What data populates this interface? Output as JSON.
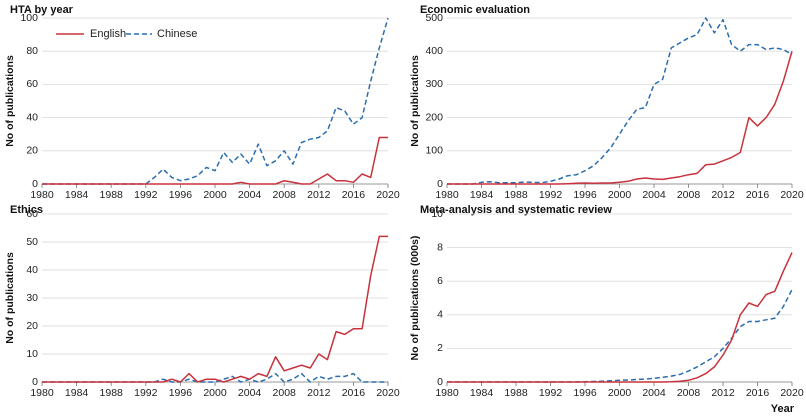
{
  "colors": {
    "english": "#c8323c",
    "chinese": "#2a6eb0"
  },
  "legend": {
    "english": "English",
    "chinese": "Chinese"
  },
  "chart_data": [
    {
      "id": "hta",
      "type": "line",
      "title": "HTA by year",
      "xlabel": "",
      "ylabel": "No of publications",
      "xlim": [
        1980,
        2020
      ],
      "xticks": [
        1980,
        1984,
        1988,
        1992,
        1996,
        2000,
        2004,
        2008,
        2012,
        2016,
        2020
      ],
      "ylim": [
        0,
        100
      ],
      "yticks": [
        0,
        20,
        40,
        60,
        80,
        100
      ],
      "x": [
        1980,
        1981,
        1982,
        1983,
        1984,
        1985,
        1986,
        1987,
        1988,
        1989,
        1990,
        1991,
        1992,
        1993,
        1994,
        1995,
        1996,
        1997,
        1998,
        1999,
        2000,
        2001,
        2002,
        2003,
        2004,
        2005,
        2006,
        2007,
        2008,
        2009,
        2010,
        2011,
        2012,
        2013,
        2014,
        2015,
        2016,
        2017,
        2018,
        2019,
        2020
      ],
      "series": [
        {
          "name": "English",
          "key": "english",
          "values": [
            0,
            0,
            0,
            0,
            0,
            0,
            0,
            0,
            0,
            0,
            0,
            0,
            0,
            0,
            0,
            0,
            0,
            0,
            0,
            0,
            0,
            0,
            0,
            1,
            0,
            0,
            0,
            0,
            2,
            1,
            0,
            0,
            3,
            6,
            2,
            2,
            1,
            6,
            4,
            28,
            28
          ]
        },
        {
          "name": "Chinese",
          "key": "chinese",
          "values": [
            0,
            0,
            0,
            0,
            0,
            0,
            0,
            0,
            0,
            0,
            0,
            0,
            0,
            4,
            9,
            4,
            2,
            3,
            5,
            10,
            8,
            19,
            13,
            18,
            12,
            24,
            11,
            14,
            20,
            12,
            25,
            27,
            28,
            32,
            46,
            44,
            36,
            40,
            62,
            82,
            100
          ]
        }
      ]
    },
    {
      "id": "economic",
      "type": "line",
      "title": "Economic evaluation",
      "xlabel": "",
      "ylabel": "No of publications",
      "xlim": [
        1980,
        2020
      ],
      "xticks": [
        1980,
        1984,
        1988,
        1992,
        1996,
        2000,
        2004,
        2008,
        2012,
        2016,
        2020
      ],
      "ylim": [
        0,
        500
      ],
      "yticks": [
        0,
        100,
        200,
        300,
        400,
        500
      ],
      "x": [
        1980,
        1981,
        1982,
        1983,
        1984,
        1985,
        1986,
        1987,
        1988,
        1989,
        1990,
        1991,
        1992,
        1993,
        1994,
        1995,
        1996,
        1997,
        1998,
        1999,
        2000,
        2001,
        2002,
        2003,
        2004,
        2005,
        2006,
        2007,
        2008,
        2009,
        2010,
        2011,
        2012,
        2013,
        2014,
        2015,
        2016,
        2017,
        2018,
        2019,
        2020
      ],
      "series": [
        {
          "name": "English",
          "key": "english",
          "values": [
            0,
            0,
            0,
            0,
            0,
            0,
            0,
            0,
            0,
            0,
            0,
            0,
            0,
            0,
            1,
            2,
            3,
            2,
            3,
            3,
            5,
            8,
            15,
            18,
            15,
            14,
            18,
            22,
            28,
            32,
            58,
            60,
            70,
            80,
            95,
            200,
            175,
            200,
            240,
            310,
            400
          ]
        },
        {
          "name": "Chinese",
          "key": "chinese",
          "values": [
            0,
            0,
            0,
            0,
            5,
            7,
            4,
            4,
            4,
            6,
            5,
            4,
            8,
            15,
            25,
            28,
            40,
            55,
            80,
            110,
            150,
            190,
            225,
            230,
            300,
            315,
            410,
            425,
            440,
            450,
            500,
            455,
            495,
            420,
            400,
            420,
            420,
            405,
            410,
            405,
            390
          ]
        }
      ]
    },
    {
      "id": "ethics",
      "type": "line",
      "title": "Ethics",
      "xlabel": "",
      "ylabel": "No of publications",
      "xlim": [
        1980,
        2020
      ],
      "xticks": [
        1980,
        1984,
        1988,
        1992,
        1996,
        2000,
        2004,
        2008,
        2012,
        2016,
        2020
      ],
      "ylim": [
        0,
        60
      ],
      "yticks": [
        0,
        10,
        20,
        30,
        40,
        50,
        60
      ],
      "x": [
        1980,
        1981,
        1982,
        1983,
        1984,
        1985,
        1986,
        1987,
        1988,
        1989,
        1990,
        1991,
        1992,
        1993,
        1994,
        1995,
        1996,
        1997,
        1998,
        1999,
        2000,
        2001,
        2002,
        2003,
        2004,
        2005,
        2006,
        2007,
        2008,
        2009,
        2010,
        2011,
        2012,
        2013,
        2014,
        2015,
        2016,
        2017,
        2018,
        2019,
        2020
      ],
      "series": [
        {
          "name": "English",
          "key": "english",
          "values": [
            0,
            0,
            0,
            0,
            0,
            0,
            0,
            0,
            0,
            0,
            0,
            0,
            0,
            0,
            0,
            1,
            0,
            3,
            0,
            1,
            1,
            0,
            1,
            2,
            1,
            3,
            2,
            9,
            4,
            5,
            6,
            5,
            10,
            8,
            18,
            17,
            19,
            19,
            38,
            52,
            52
          ]
        },
        {
          "name": "Chinese",
          "key": "chinese",
          "values": [
            0,
            0,
            0,
            0,
            0,
            0,
            0,
            0,
            0,
            0,
            0,
            0,
            0,
            0,
            1,
            0,
            0,
            1,
            0,
            0,
            0,
            1,
            2,
            0,
            1,
            0,
            1,
            3,
            0,
            1,
            3,
            0,
            2,
            1,
            2,
            2,
            3,
            0,
            0,
            0,
            0
          ]
        }
      ]
    },
    {
      "id": "meta",
      "type": "line",
      "title": "Meta-analysis and systematic review",
      "xlabel": "Year",
      "ylabel": "No of publications (000s)",
      "xlim": [
        1980,
        2020
      ],
      "xticks": [
        1980,
        1984,
        1988,
        1992,
        1996,
        2000,
        2004,
        2008,
        2012,
        2016,
        2020
      ],
      "ylim": [
        0,
        10
      ],
      "yticks": [
        0,
        2,
        4,
        6,
        8,
        10
      ],
      "x": [
        1980,
        1981,
        1982,
        1983,
        1984,
        1985,
        1986,
        1987,
        1988,
        1989,
        1990,
        1991,
        1992,
        1993,
        1994,
        1995,
        1996,
        1997,
        1998,
        1999,
        2000,
        2001,
        2002,
        2003,
        2004,
        2005,
        2006,
        2007,
        2008,
        2009,
        2010,
        2011,
        2012,
        2013,
        2014,
        2015,
        2016,
        2017,
        2018,
        2019,
        2020
      ],
      "series": [
        {
          "name": "English",
          "key": "english",
          "values": [
            0,
            0,
            0,
            0,
            0,
            0,
            0,
            0,
            0,
            0,
            0,
            0,
            0,
            0,
            0,
            0,
            0,
            0,
            0,
            0,
            0,
            0,
            0,
            0,
            0,
            0,
            0.02,
            0.05,
            0.1,
            0.25,
            0.5,
            0.9,
            1.6,
            2.5,
            4.0,
            4.7,
            4.5,
            5.2,
            5.4,
            6.6,
            7.7
          ]
        },
        {
          "name": "Chinese",
          "key": "chinese",
          "values": [
            0,
            0,
            0,
            0,
            0,
            0,
            0,
            0,
            0,
            0,
            0,
            0,
            0,
            0,
            0,
            0,
            0.02,
            0.03,
            0.05,
            0.07,
            0.1,
            0.12,
            0.15,
            0.18,
            0.22,
            0.28,
            0.35,
            0.45,
            0.65,
            0.9,
            1.2,
            1.5,
            2.0,
            2.6,
            3.3,
            3.6,
            3.6,
            3.7,
            3.8,
            4.5,
            5.5
          ]
        }
      ]
    }
  ]
}
